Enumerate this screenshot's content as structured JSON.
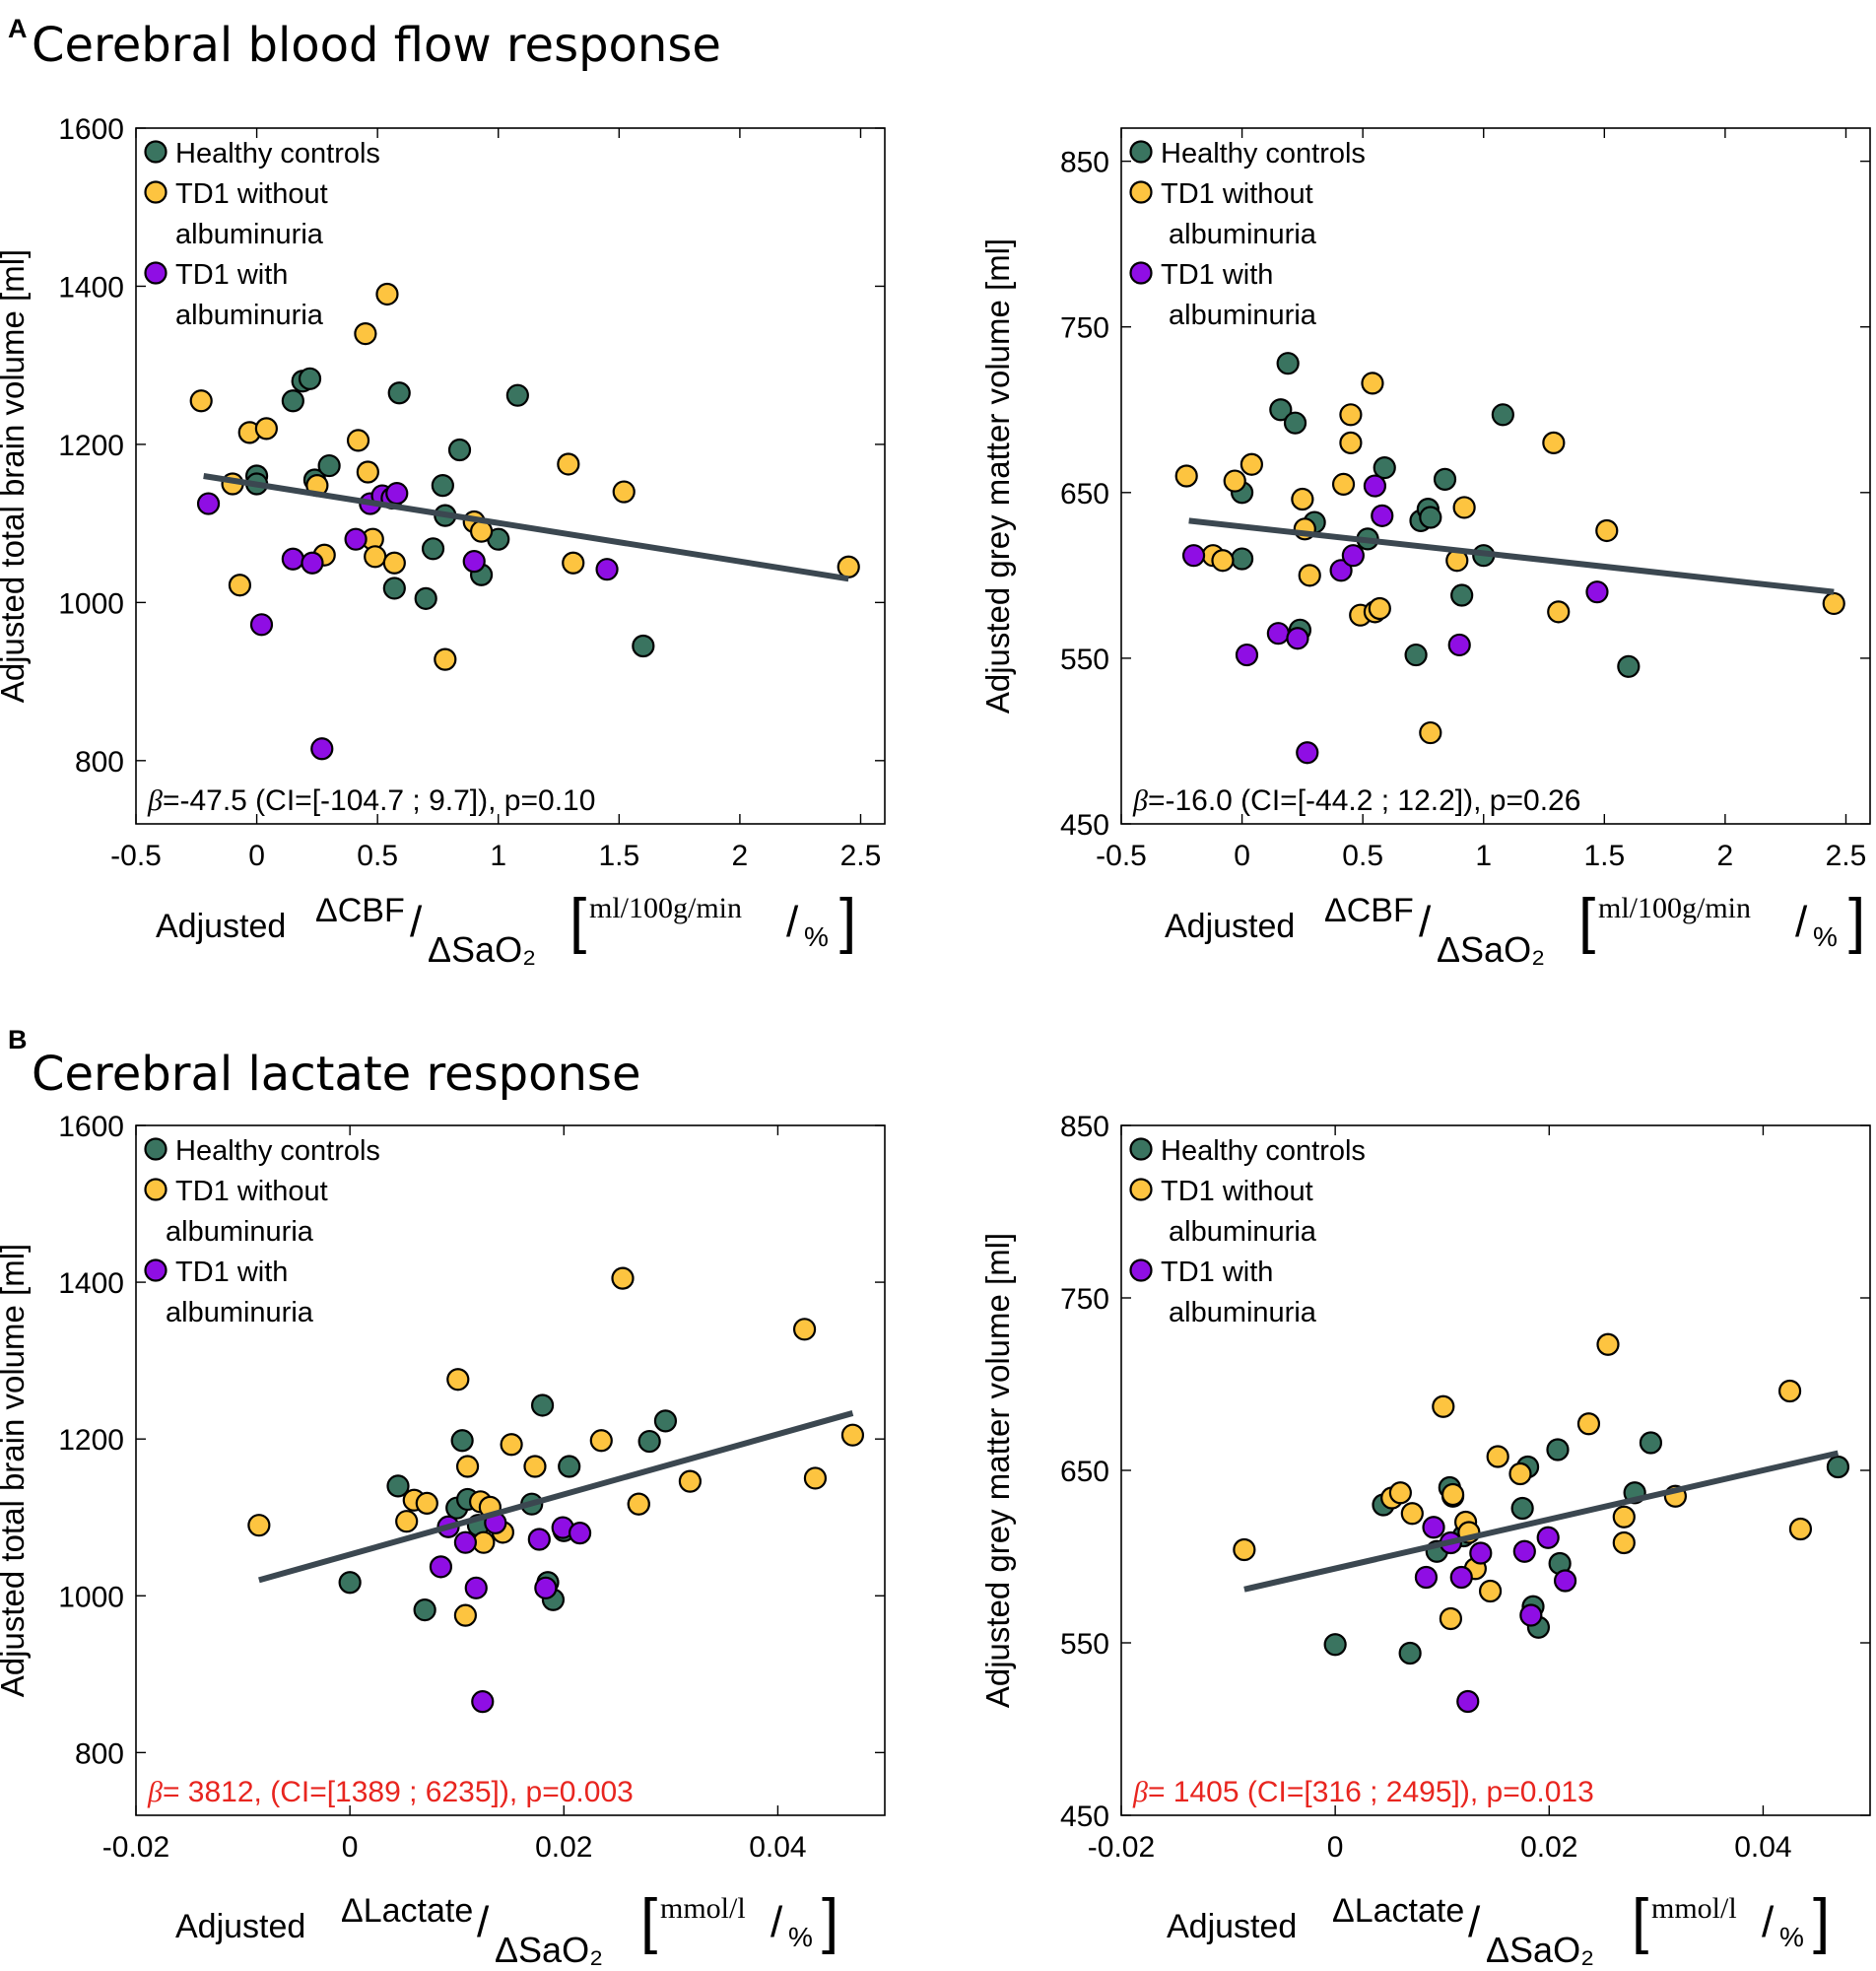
{
  "sections": [
    {
      "letter": "A",
      "title": "Cerebral blood flow response"
    },
    {
      "letter": "B",
      "title": "Cerebral lactate response"
    }
  ],
  "groups": [
    {
      "key": "hc",
      "label_lines": [
        "Healthy controls"
      ],
      "color": "#3a7460"
    },
    {
      "key": "noalb",
      "label_lines": [
        "TD1 without",
        "albuminuria"
      ],
      "color": "#fdc440"
    },
    {
      "key": "alb",
      "label_lines": [
        "TD1 with",
        "albuminuria"
      ],
      "color": "#8f0ee4"
    }
  ],
  "colors": {
    "regression": "#3b4750",
    "significant": "#e8251f",
    "normal": "#000000",
    "edge": "#000000"
  },
  "xlabels": {
    "cbf": {
      "prefix": "Adjusted",
      "num": "ΔCBF",
      "den": "ΔSaO₂",
      "unit": "ml/100g/min",
      "unit_den": "%"
    },
    "lac": {
      "prefix": "Adjusted",
      "num": "ΔLactate",
      "den": "ΔSaO₂",
      "unit": "mmol/l",
      "unit_den": "%"
    }
  },
  "chart_data": [
    {
      "type": "scatter",
      "id": "A1",
      "xlabel_key": "cbf",
      "ylabel": "Adjusted total brain volume [ml]",
      "xlim": [
        -0.5,
        2.6
      ],
      "ylim": [
        720,
        1600
      ],
      "xticks": [
        -0.5,
        0,
        0.5,
        1,
        1.5,
        2,
        2.5
      ],
      "xtick_labels": [
        "-0.5",
        "0",
        "0.5",
        "1",
        "1.5",
        "2",
        "2.5"
      ],
      "yticks": [
        800,
        1000,
        1200,
        1400,
        1600
      ],
      "ytick_labels": [
        "800",
        "1000",
        "1200",
        "1400",
        "1600"
      ],
      "legend_x_offset": 0,
      "regression": {
        "x": [
          -0.22,
          2.45
        ],
        "y": [
          1160,
          1030
        ]
      },
      "annotation": "β=-47.5 (CI=[-104.7 ; 9.7]), p=0.10",
      "significant": false,
      "series": [
        {
          "group": "hc",
          "points": [
            [
              0,
              1160
            ],
            [
              0,
              1150
            ],
            [
              0.15,
              1255
            ],
            [
              0.19,
              1280
            ],
            [
              0.22,
              1283
            ],
            [
              0.24,
              1155
            ],
            [
              0.3,
              1173
            ],
            [
              0.59,
              1265
            ],
            [
              0.73,
              1068
            ],
            [
              0.77,
              1148
            ],
            [
              0.78,
              1110
            ],
            [
              0.84,
              1193
            ],
            [
              0.57,
              1018
            ],
            [
              0.7,
              1005
            ],
            [
              0.93,
              1035
            ],
            [
              1,
              1080
            ],
            [
              1.08,
              1262
            ],
            [
              1.6,
              945
            ]
          ]
        },
        {
          "group": "noalb",
          "points": [
            [
              -0.23,
              1255
            ],
            [
              -0.1,
              1150
            ],
            [
              -0.07,
              1022
            ],
            [
              -0.03,
              1215
            ],
            [
              0.04,
              1220
            ],
            [
              0.25,
              1148
            ],
            [
              0.28,
              1060
            ],
            [
              0.42,
              1205
            ],
            [
              0.45,
              1340
            ],
            [
              0.46,
              1165
            ],
            [
              0.48,
              1080
            ],
            [
              0.49,
              1058
            ],
            [
              0.54,
              1390
            ],
            [
              0.57,
              1050
            ],
            [
              0.78,
              928
            ],
            [
              0.9,
              1102
            ],
            [
              0.93,
              1090
            ],
            [
              1.29,
              1175
            ],
            [
              1.31,
              1050
            ],
            [
              1.52,
              1140
            ],
            [
              2.45,
              1045
            ]
          ]
        },
        {
          "group": "alb",
          "points": [
            [
              -0.2,
              1125
            ],
            [
              0.02,
              972
            ],
            [
              0.15,
              1055
            ],
            [
              0.23,
              1050
            ],
            [
              0.27,
              815
            ],
            [
              0.41,
              1080
            ],
            [
              0.47,
              1125
            ],
            [
              0.52,
              1135
            ],
            [
              0.56,
              1132
            ],
            [
              0.58,
              1138
            ],
            [
              0.9,
              1052
            ],
            [
              1.45,
              1042
            ]
          ]
        }
      ]
    },
    {
      "type": "scatter",
      "id": "A2",
      "xlabel_key": "cbf",
      "ylabel": "Adjusted grey matter volume [ml]",
      "xlim": [
        -0.5,
        2.6
      ],
      "ylim": [
        450,
        870
      ],
      "xticks": [
        -0.5,
        0,
        0.5,
        1,
        1.5,
        2,
        2.5
      ],
      "xtick_labels": [
        "-0.5",
        "0",
        "0.5",
        "1",
        "1.5",
        "2",
        "2.5"
      ],
      "yticks": [
        450,
        550,
        650,
        750,
        850
      ],
      "ytick_labels": [
        "450",
        "550",
        "650",
        "750",
        "850"
      ],
      "legend_x_offset": 8,
      "regression": {
        "x": [
          -0.22,
          2.45
        ],
        "y": [
          633,
          590
        ]
      },
      "annotation": "β=-16.0 (CI=[-44.2 ; 12.2]), p=0.26",
      "significant": false,
      "series": [
        {
          "group": "hc",
          "points": [
            [
              0,
              650
            ],
            [
              0,
              610
            ],
            [
              0.16,
              700
            ],
            [
              0.19,
              728
            ],
            [
              0.22,
              692
            ],
            [
              0.24,
              567
            ],
            [
              0.3,
              632
            ],
            [
              0.59,
              665
            ],
            [
              0.72,
              552
            ],
            [
              0.74,
              633
            ],
            [
              0.77,
              640
            ],
            [
              0.78,
              635
            ],
            [
              0.84,
              658
            ],
            [
              0.91,
              588
            ],
            [
              1,
              612
            ],
            [
              1.08,
              697
            ],
            [
              1.6,
              545
            ],
            [
              0.52,
              622
            ]
          ]
        },
        {
          "group": "noalb",
          "points": [
            [
              -0.23,
              660
            ],
            [
              -0.12,
              612
            ],
            [
              -0.08,
              609
            ],
            [
              -0.03,
              657
            ],
            [
              0.04,
              667
            ],
            [
              0.25,
              646
            ],
            [
              0.26,
              628
            ],
            [
              0.28,
              600
            ],
            [
              0.42,
              655
            ],
            [
              0.45,
              697
            ],
            [
              0.45,
              680
            ],
            [
              0.49,
              576
            ],
            [
              0.54,
              716
            ],
            [
              0.55,
              578
            ],
            [
              0.57,
              580
            ],
            [
              0.78,
              505
            ],
            [
              0.89,
              609
            ],
            [
              0.92,
              641
            ],
            [
              1.29,
              680
            ],
            [
              1.31,
              578
            ],
            [
              1.51,
              627
            ],
            [
              2.45,
              583
            ]
          ]
        },
        {
          "group": "alb",
          "points": [
            [
              -0.2,
              612
            ],
            [
              0.02,
              552
            ],
            [
              0.15,
              565
            ],
            [
              0.23,
              562
            ],
            [
              0.27,
              493
            ],
            [
              0.41,
              603
            ],
            [
              0.46,
              612
            ],
            [
              0.55,
              654
            ],
            [
              0.58,
              636
            ],
            [
              0.9,
              558
            ],
            [
              1.47,
              590
            ]
          ]
        }
      ]
    },
    {
      "type": "scatter",
      "id": "B1",
      "xlabel_key": "lac",
      "ylabel": "Adjusted total brain volume [ml]",
      "xlim": [
        -0.02,
        0.05
      ],
      "ylim": [
        720,
        1600
      ],
      "xticks": [
        -0.02,
        0,
        0.02,
        0.04
      ],
      "xtick_labels": [
        "-0.02",
        "0",
        "0.02",
        "0.04"
      ],
      "yticks": [
        800,
        1000,
        1200,
        1400,
        1600
      ],
      "ytick_labels": [
        "800",
        "1000",
        "1200",
        "1400",
        "1600"
      ],
      "legend_x_offset": -10,
      "regression": {
        "x": [
          -0.0085,
          0.047
        ],
        "y": [
          1020,
          1233
        ]
      },
      "annotation": "β= 3812, (CI=[1389 ; 6235]), p=0.003",
      "significant": true,
      "series": [
        {
          "group": "hc",
          "points": [
            [
              0,
              1017
            ],
            [
              0.0045,
              1140
            ],
            [
              0.007,
              982
            ],
            [
              0.01,
              1112
            ],
            [
              0.0105,
              1198
            ],
            [
              0.011,
              1123
            ],
            [
              0.012,
              1090
            ],
            [
              0.017,
              1117
            ],
            [
              0.018,
              1243
            ],
            [
              0.0185,
              1017
            ],
            [
              0.019,
              995
            ],
            [
              0.02,
              1083
            ],
            [
              0.0205,
              1165
            ],
            [
              0.027,
              1117
            ],
            [
              0.028,
              1197
            ],
            [
              0.0295,
              1223
            ]
          ]
        },
        {
          "group": "noalb",
          "points": [
            [
              -0.0085,
              1090
            ],
            [
              0.0053,
              1095
            ],
            [
              0.006,
              1122
            ],
            [
              0.0072,
              1118
            ],
            [
              0.0101,
              1276
            ],
            [
              0.0108,
              975
            ],
            [
              0.011,
              1165
            ],
            [
              0.0122,
              1120
            ],
            [
              0.0125,
              1068
            ],
            [
              0.0131,
              1113
            ],
            [
              0.0143,
              1081
            ],
            [
              0.0151,
              1193
            ],
            [
              0.0173,
              1165
            ],
            [
              0.0235,
              1198
            ],
            [
              0.0255,
              1405
            ],
            [
              0.027,
              1117
            ],
            [
              0.0318,
              1146
            ],
            [
              0.0425,
              1340
            ],
            [
              0.0435,
              1150
            ],
            [
              0.047,
              1205
            ]
          ]
        },
        {
          "group": "alb",
          "points": [
            [
              0.0085,
              1037
            ],
            [
              0.0092,
              1088
            ],
            [
              0.0108,
              1068
            ],
            [
              0.0118,
              1010
            ],
            [
              0.0124,
              865
            ],
            [
              0.0136,
              1093
            ],
            [
              0.0177,
              1072
            ],
            [
              0.0183,
              1010
            ],
            [
              0.0199,
              1087
            ],
            [
              0.0215,
              1080
            ]
          ]
        }
      ]
    },
    {
      "type": "scatter",
      "id": "B2",
      "xlabel_key": "lac",
      "ylabel": "Adjusted grey matter volume [ml]",
      "xlim": [
        -0.02,
        0.05
      ],
      "ylim": [
        450,
        850
      ],
      "xticks": [
        -0.02,
        0,
        0.02,
        0.04
      ],
      "xtick_labels": [
        "-0.02",
        "0",
        "0.02",
        "0.04"
      ],
      "yticks": [
        450,
        550,
        650,
        750,
        850
      ],
      "ytick_labels": [
        "450",
        "550",
        "650",
        "750",
        "850"
      ],
      "legend_x_offset": 8,
      "regression": {
        "x": [
          -0.0085,
          0.047
        ],
        "y": [
          581,
          660
        ]
      },
      "annotation": "β= 1405 (CI=[316 ; 2495]), p=0.013",
      "significant": true,
      "series": [
        {
          "group": "hc",
          "points": [
            [
              0,
              549
            ],
            [
              0.0045,
              630
            ],
            [
              0.007,
              544
            ],
            [
              0.0095,
              603
            ],
            [
              0.0107,
              640
            ],
            [
              0.011,
              635
            ],
            [
              0.012,
              612
            ],
            [
              0.0175,
              628
            ],
            [
              0.018,
              652
            ],
            [
              0.0185,
              571
            ],
            [
              0.019,
              559
            ],
            [
              0.021,
              596
            ],
            [
              0.0208,
              662
            ],
            [
              0.028,
              637
            ],
            [
              0.0295,
              666
            ],
            [
              0.047,
              652
            ]
          ]
        },
        {
          "group": "noalb",
          "points": [
            [
              -0.0085,
              604
            ],
            [
              0.0053,
              634
            ],
            [
              0.0061,
              637
            ],
            [
              0.0072,
              625
            ],
            [
              0.0101,
              687
            ],
            [
              0.0108,
              564
            ],
            [
              0.011,
              636
            ],
            [
              0.0122,
              620
            ],
            [
              0.0125,
              614
            ],
            [
              0.0131,
              593
            ],
            [
              0.0145,
              580
            ],
            [
              0.0152,
              658
            ],
            [
              0.0173,
              648
            ],
            [
              0.0237,
              677
            ],
            [
              0.0255,
              723
            ],
            [
              0.027,
              623
            ],
            [
              0.027,
              608
            ],
            [
              0.0318,
              635
            ],
            [
              0.0425,
              696
            ],
            [
              0.0435,
              616
            ]
          ]
        },
        {
          "group": "alb",
          "points": [
            [
              0.0085,
              588
            ],
            [
              0.0092,
              617
            ],
            [
              0.0108,
              608
            ],
            [
              0.0118,
              588
            ],
            [
              0.0124,
              516
            ],
            [
              0.0136,
              602
            ],
            [
              0.0177,
              603
            ],
            [
              0.0183,
              566
            ],
            [
              0.0199,
              611
            ],
            [
              0.0215,
              586
            ]
          ]
        }
      ]
    }
  ]
}
